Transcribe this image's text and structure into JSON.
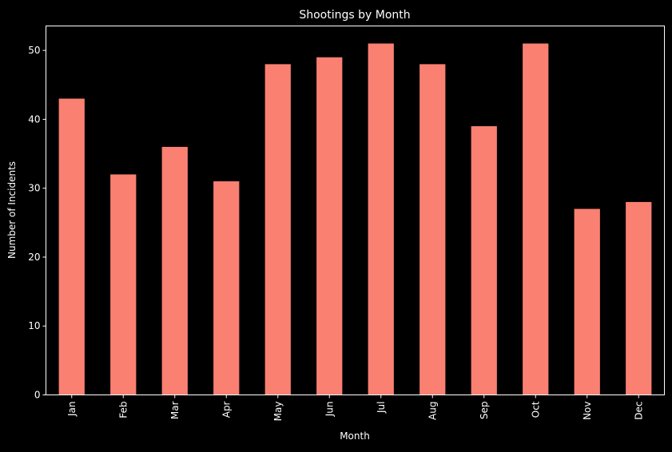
{
  "chart_data": {
    "type": "bar",
    "title": "Shootings by Month",
    "xlabel": "Month",
    "ylabel": "Number of Incidents",
    "categories": [
      "Jan",
      "Feb",
      "Mar",
      "Apr",
      "May",
      "Jun",
      "Jul",
      "Aug",
      "Sep",
      "Oct",
      "Nov",
      "Dec"
    ],
    "values": [
      43,
      32,
      36,
      31,
      48,
      49,
      51,
      48,
      39,
      51,
      27,
      28
    ],
    "ylim": [
      0,
      53.55
    ],
    "yticks": [
      0,
      10,
      20,
      30,
      40,
      50
    ],
    "grid": false,
    "legend": false
  },
  "colors": {
    "background": "#000000",
    "bar": "#fa8072",
    "axis": "#ffffff",
    "text": "#ffffff"
  }
}
